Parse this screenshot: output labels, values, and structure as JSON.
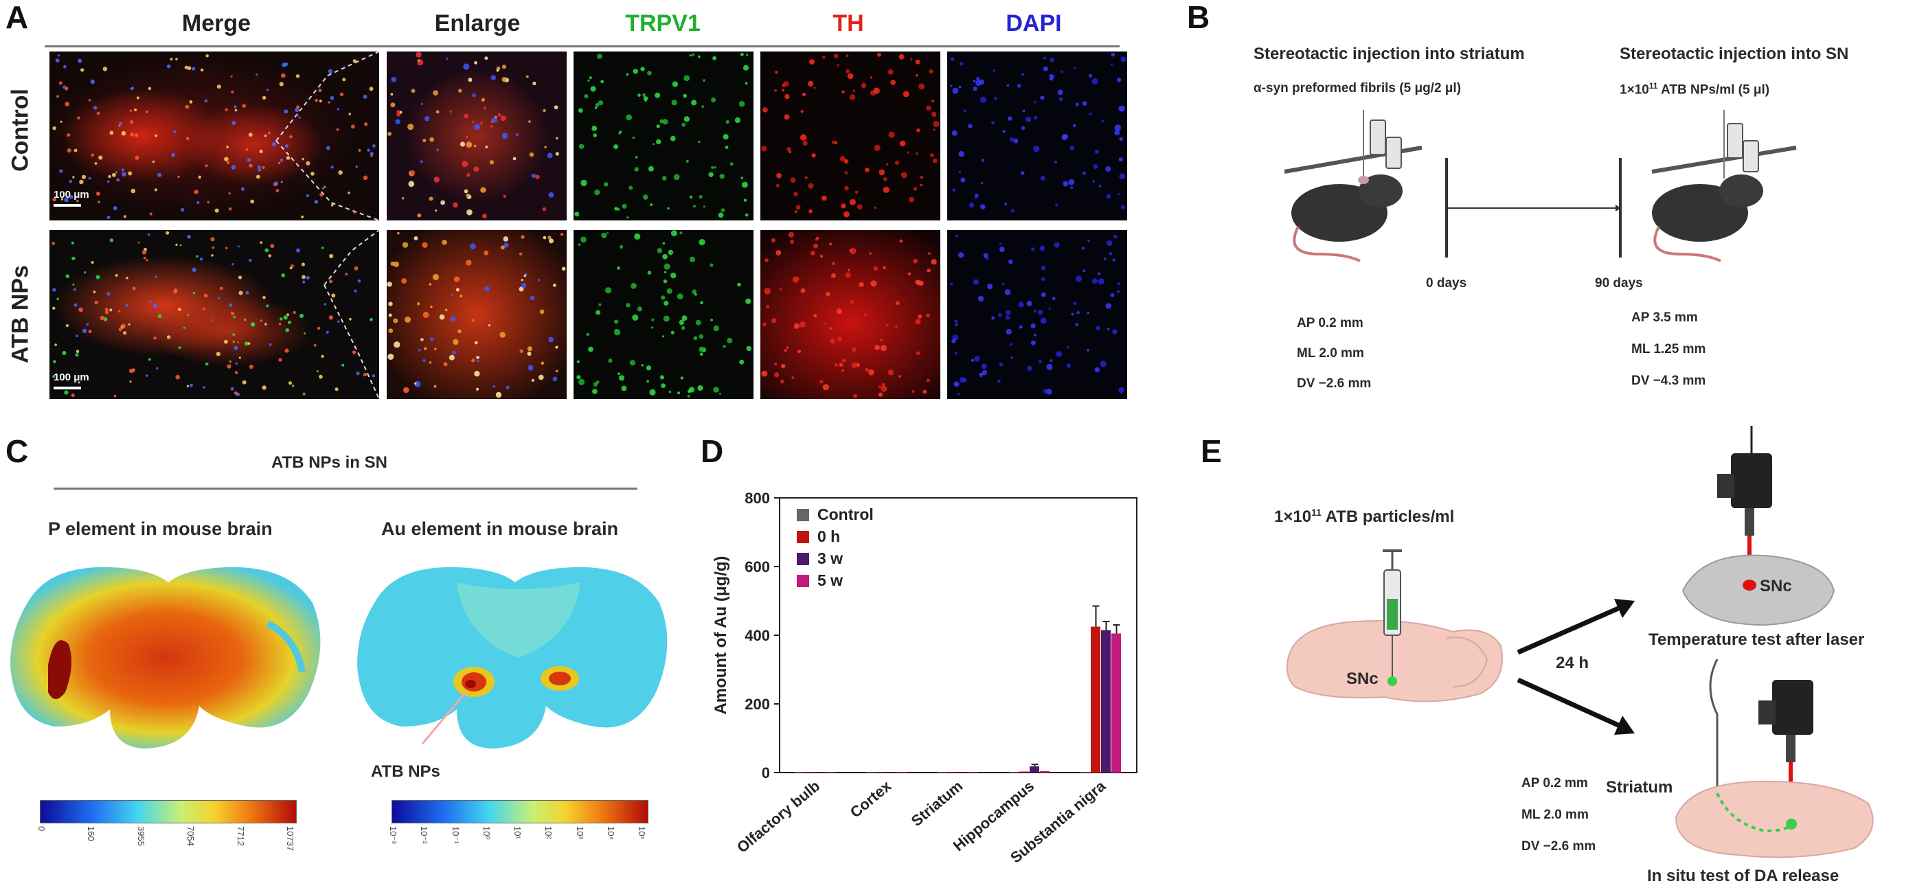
{
  "panel_a": {
    "label": "A",
    "columns": [
      {
        "title": "Merge",
        "color": "#222222"
      },
      {
        "title": "Enlarge",
        "color": "#222222"
      },
      {
        "title": "TRPV1",
        "color": "#1fb02e"
      },
      {
        "title": "TH",
        "color": "#e2231a"
      },
      {
        "title": "DAPI",
        "color": "#2323d6"
      }
    ],
    "rows": [
      "Control",
      "ATB NPs"
    ],
    "scale_label": "100 μm"
  },
  "panel_b": {
    "label": "B",
    "title_left": "Stereotactic injection into striatum",
    "subtitle_left": "α-syn preformed fibrils (5 μg/2 μl)",
    "title_right": "Stereotactic injection into SN",
    "subtitle_right_pre": "1×10",
    "subtitle_right_exp": "11",
    "subtitle_right_post": " ATB NPs/ml (5 μl)",
    "day_left": "0 days",
    "day_right": "90 days",
    "coords_left": [
      "AP 0.2 mm",
      "ML 2.0 mm",
      "DV −2.6 mm"
    ],
    "coords_right": [
      "AP 3.5 mm",
      "ML 1.25 mm",
      "DV −4.3 mm"
    ]
  },
  "panel_c": {
    "label": "C",
    "header": "ATB NPs in SN",
    "left_title": "P element in mouse brain",
    "right_title": "Au element in mouse brain",
    "arrow_label": "ATB NPs",
    "left_ticks": [
      "0",
      "160",
      "3955",
      "7054",
      "7712",
      "10737"
    ],
    "right_ticks": [
      "10⁻³",
      "10⁻²",
      "10⁻¹",
      "10⁰",
      "10¹",
      "10²",
      "10³",
      "10⁴",
      "10⁵"
    ]
  },
  "panel_d": {
    "label": "D",
    "chart_data": {
      "type": "bar",
      "categories": [
        "Olfactory bulb",
        "Cortex",
        "Striatum",
        "Hippocampus",
        "Substantia nigra"
      ],
      "series": [
        {
          "name": "Control",
          "color": "#666666",
          "values": [
            2,
            2,
            2,
            2,
            2
          ]
        },
        {
          "name": "0 h",
          "color": "#c0150f",
          "values": [
            2,
            2,
            2,
            3,
            425
          ]
        },
        {
          "name": "3 w",
          "color": "#4a1a6b",
          "values": [
            2,
            2,
            2,
            18,
            415
          ]
        },
        {
          "name": "5 w",
          "color": "#c21a7d",
          "values": [
            2,
            2,
            2,
            4,
            405
          ]
        }
      ],
      "errors": [
        [
          1,
          1,
          1,
          1,
          1
        ],
        [
          1,
          1,
          1,
          1,
          60
        ],
        [
          1,
          1,
          1,
          6,
          25
        ],
        [
          1,
          1,
          1,
          2,
          25
        ]
      ],
      "ylabel": "Amount of Au (μg/g)",
      "ylim": [
        0,
        800
      ],
      "yticks": [
        0,
        200,
        400,
        600,
        800
      ]
    }
  },
  "panel_e": {
    "label": "E",
    "conc_pre": "1×10",
    "conc_exp": "11",
    "conc_post": " ATB particles/ml",
    "snc_label": "SNc",
    "time_label": "24 h",
    "snc_top_label": "SNc",
    "caption_top": "Temperature test after laser",
    "striatum_label": "Striatum",
    "coords": [
      "AP 0.2 mm",
      "ML 2.0 mm",
      "DV −2.6 mm"
    ],
    "caption_bottom": "In situ test of DA release"
  }
}
